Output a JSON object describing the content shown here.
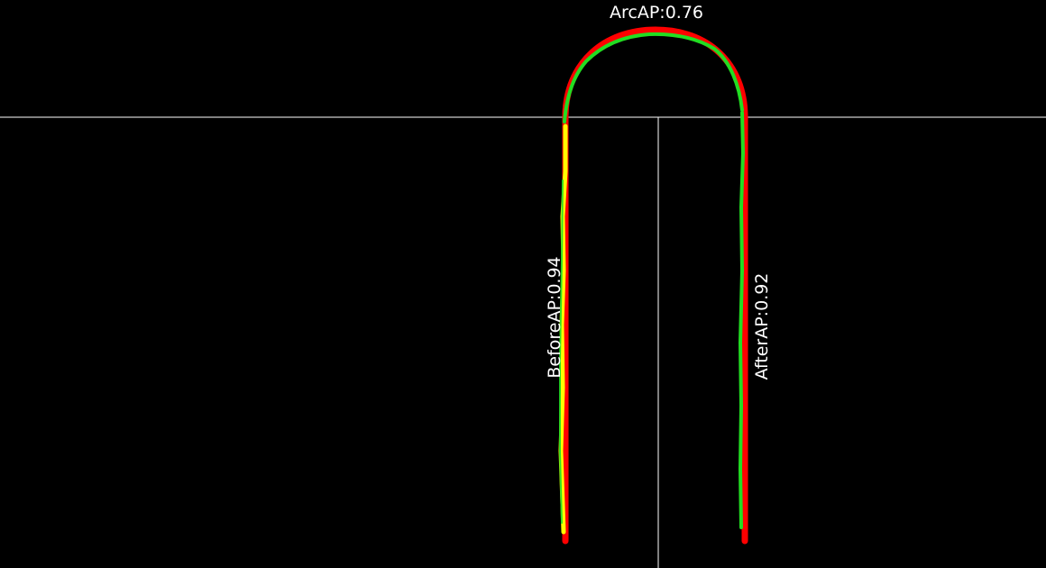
{
  "labels": {
    "arc": "ArcAP:0.76",
    "before": "BeforeAP:0.94",
    "after": "AfterAP:0.92"
  },
  "colors": {
    "background": "#000000",
    "reference_lines": "#ffffff",
    "ground_truth": "#ff0000",
    "prediction_arc": "#22dd22",
    "prediction_before": "#ffff00",
    "prediction_after": "#22dd22"
  },
  "metrics": {
    "arc_ap": 0.76,
    "before_ap": 0.94,
    "after_ap": 0.92
  }
}
